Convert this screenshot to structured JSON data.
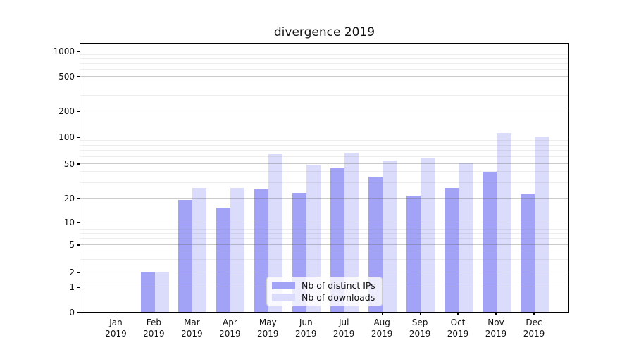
{
  "title": "divergence 2019",
  "chart_data": {
    "type": "bar",
    "title": "divergence 2019",
    "x_tick_labels": [
      [
        "Jan",
        "2019"
      ],
      [
        "Feb",
        "2019"
      ],
      [
        "Mar",
        "2019"
      ],
      [
        "Apr",
        "2019"
      ],
      [
        "May",
        "2019"
      ],
      [
        "Jun",
        "2019"
      ],
      [
        "Jul",
        "2019"
      ],
      [
        "Aug",
        "2019"
      ],
      [
        "Sep",
        "2019"
      ],
      [
        "Oct",
        "2019"
      ],
      [
        "Nov",
        "2019"
      ],
      [
        "Dec",
        "2019"
      ]
    ],
    "series": [
      {
        "name": "Nb of distinct IPs",
        "color": "#a2a2f6",
        "values": [
          0,
          2,
          19,
          15,
          25,
          23,
          44,
          35,
          21,
          26,
          40,
          22
        ]
      },
      {
        "name": "Nb of downloads",
        "color": "#dbdbfb",
        "values": [
          0,
          2,
          26,
          26,
          63,
          48,
          66,
          54,
          58,
          50,
          110,
          100
        ]
      }
    ],
    "yscale": "symlog",
    "ylim": [
      0,
      1500
    ],
    "y_ticks": [
      0,
      1,
      2,
      5,
      10,
      20,
      50,
      100,
      200,
      500,
      1000
    ],
    "y_minor_ticks": [
      3,
      4,
      6,
      7,
      8,
      9,
      30,
      40,
      60,
      70,
      80,
      90,
      300,
      400,
      600,
      700,
      800,
      900
    ],
    "grid": "both, drawn above bars",
    "legend_position": "lower center"
  }
}
